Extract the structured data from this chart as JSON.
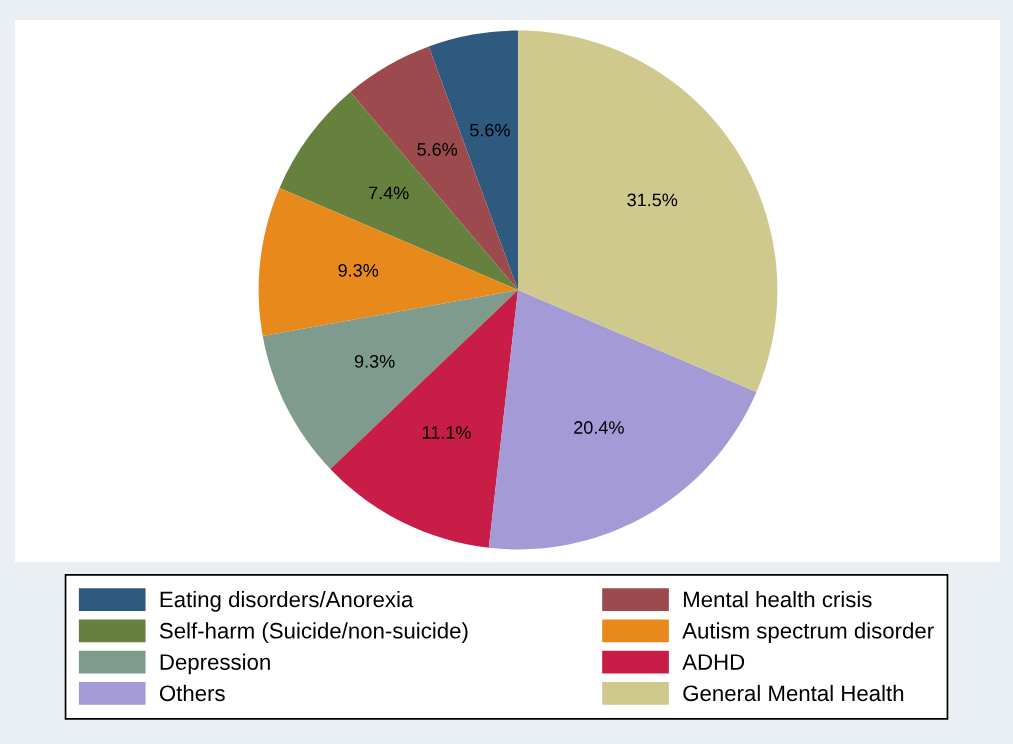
{
  "chart_data": {
    "type": "pie",
    "categories": [
      "Eating disorders/Anorexia",
      "Mental health crisis",
      "Self-harm (Suicide/non-suicide)",
      "Autism spectrum disorder",
      "Depression",
      "ADHD",
      "Others",
      "General Mental Health"
    ],
    "values": [
      5.6,
      5.6,
      7.4,
      9.3,
      9.3,
      11.1,
      20.4,
      31.5
    ],
    "value_labels": [
      "5.6%",
      "5.6%",
      "7.4%",
      "9.3%",
      "9.3%",
      "11.1%",
      "20.4%",
      "31.5%"
    ],
    "colors": [
      "#2e5a80",
      "#9c4a4e",
      "#66803e",
      "#e8891c",
      "#7f9b8e",
      "#c81d46",
      "#a39ad6",
      "#cfc98e"
    ],
    "legend": "bottom"
  }
}
